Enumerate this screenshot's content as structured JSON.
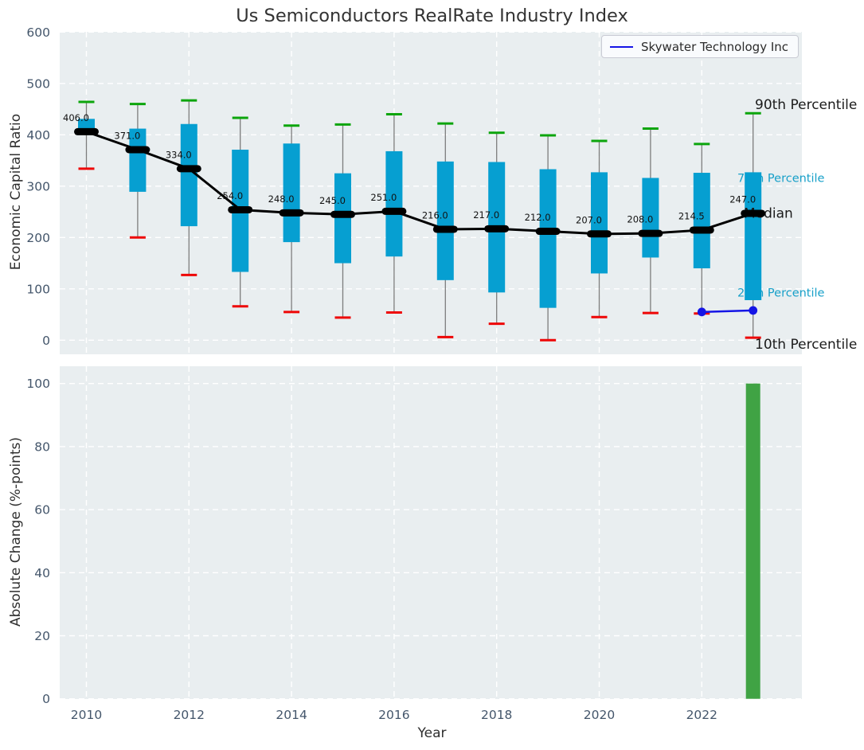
{
  "title": "Us Semiconductors RealRate Industry Index",
  "legend": {
    "label": "Skywater Technology Inc"
  },
  "colors": {
    "plot_bg": "#e9eef0",
    "grid": "#ffffff",
    "box_fill": "#069fd1",
    "whisker": "#7d7d7d",
    "cap_high": "#0ca50c",
    "cap_low": "#ee0606",
    "median": "#000000",
    "company_line": "#1515e6",
    "bar_green": "#40a344",
    "tick_label": "#44566b",
    "annotation_dark": "#1b1b1b",
    "annotation_cyan": "#18a0c9",
    "median_label": "#111111"
  },
  "chart_data": [
    {
      "type": "boxplot",
      "ylabel": "Economic Capital Ratio",
      "ylim": [
        0,
        600
      ],
      "yticks": [
        0,
        100,
        200,
        300,
        400,
        500,
        600
      ],
      "xticks": [
        2010,
        2012,
        2014,
        2016,
        2018,
        2020,
        2022
      ],
      "grid": true,
      "legend_position": "upper right",
      "years": [
        2010,
        2011,
        2012,
        2013,
        2014,
        2015,
        2016,
        2017,
        2018,
        2019,
        2020,
        2021,
        2022,
        2023
      ],
      "series": [
        {
          "name": "90th Percentile",
          "values": [
            464,
            460,
            467,
            433,
            418,
            420,
            440,
            422,
            404,
            399,
            388,
            412,
            382,
            442
          ]
        },
        {
          "name": "75th Percentile",
          "values": [
            431,
            412,
            421,
            371,
            383,
            325,
            368,
            348,
            347,
            333,
            327,
            316,
            326,
            327
          ]
        },
        {
          "name": "Median",
          "values": [
            406,
            371,
            334,
            254,
            248,
            245,
            251,
            216,
            217,
            212,
            207,
            208,
            214.5,
            247
          ]
        },
        {
          "name": "25th Percentile",
          "values": [
            400,
            289,
            222,
            133,
            191,
            150,
            163,
            117,
            93,
            63,
            130,
            161,
            140,
            78
          ]
        },
        {
          "name": "10th Percentile",
          "values": [
            334,
            200,
            127,
            66,
            55,
            44,
            54,
            6,
            32,
            0,
            45,
            53,
            52,
            5
          ]
        }
      ],
      "median_labels": [
        "406.0",
        "371.0",
        "334.0",
        "254.0",
        "248.0",
        "245.0",
        "251.0",
        "216.0",
        "217.0",
        "212.0",
        "207.0",
        "208.0",
        "214.5",
        "247.0"
      ],
      "company_series": {
        "name": "Skywater Technology Inc",
        "years": [
          2022,
          2023
        ],
        "values": [
          55,
          58
        ]
      },
      "annotations": [
        {
          "text": "90th Percentile",
          "value": 459,
          "style": "dark",
          "x": 948
        },
        {
          "text": "75th Percentile",
          "value": 316,
          "style": "cyan",
          "x": 926
        },
        {
          "text": "Median",
          "value": 248,
          "style": "dark",
          "x": 934
        },
        {
          "text": "25th Percentile",
          "value": 93,
          "style": "cyan",
          "x": 926
        },
        {
          "text": "10th Percentile",
          "value": -7,
          "style": "dark",
          "x": 948
        }
      ]
    },
    {
      "type": "bar",
      "ylabel": "Absolute Change (%-points)",
      "xlabel": "Year",
      "ylim": [
        0,
        100
      ],
      "yticks": [
        0,
        20,
        40,
        60,
        80,
        100
      ],
      "xticks": [
        2010,
        2012,
        2014,
        2016,
        2018,
        2020,
        2022
      ],
      "grid": true,
      "bars": [
        {
          "year": 2023,
          "value": 100
        }
      ]
    }
  ]
}
